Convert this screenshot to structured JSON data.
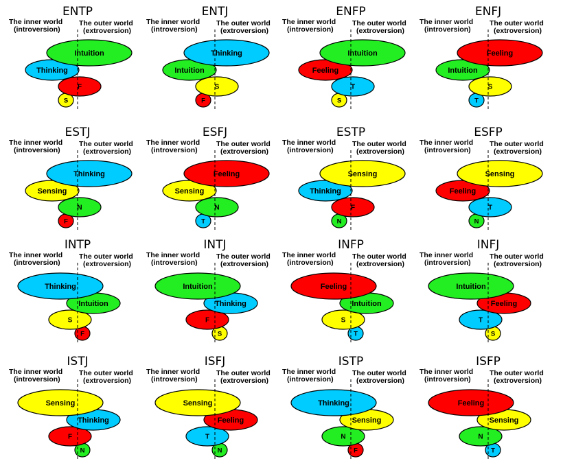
{
  "labels": {
    "inner_line1": "The inner world",
    "inner_line2": "(introversion)",
    "outer_line1": "The outer world",
    "outer_line2": "(extroversion)"
  },
  "colors": {
    "Thinking": "#00ccff",
    "Feeling": "#ff0000",
    "Intuition": "#22ee22",
    "Sensing": "#ffff00"
  },
  "letters": {
    "Thinking": "T",
    "Feeling": "F",
    "Intuition": "N",
    "Sensing": "S"
  },
  "types": [
    {
      "name": "ENTP",
      "functions": [
        "Intuition",
        "Thinking",
        "Feeling",
        "Sensing"
      ]
    },
    {
      "name": "ENTJ",
      "functions": [
        "Thinking",
        "Intuition",
        "Sensing",
        "Feeling"
      ]
    },
    {
      "name": "ENFP",
      "functions": [
        "Intuition",
        "Feeling",
        "Thinking",
        "Sensing"
      ]
    },
    {
      "name": "ENFJ",
      "functions": [
        "Feeling",
        "Intuition",
        "Sensing",
        "Thinking"
      ]
    },
    {
      "name": "ESTJ",
      "functions": [
        "Thinking",
        "Sensing",
        "Intuition",
        "Feeling"
      ]
    },
    {
      "name": "ESFJ",
      "functions": [
        "Feeling",
        "Sensing",
        "Intuition",
        "Thinking"
      ]
    },
    {
      "name": "ESTP",
      "functions": [
        "Sensing",
        "Thinking",
        "Feeling",
        "Intuition"
      ]
    },
    {
      "name": "ESFP",
      "functions": [
        "Sensing",
        "Feeling",
        "Thinking",
        "Intuition"
      ]
    },
    {
      "name": "INTP",
      "functions": [
        "Thinking",
        "Intuition",
        "Sensing",
        "Feeling"
      ]
    },
    {
      "name": "INTJ",
      "functions": [
        "Intuition",
        "Thinking",
        "Feeling",
        "Sensing"
      ]
    },
    {
      "name": "INFP",
      "functions": [
        "Feeling",
        "Intuition",
        "Sensing",
        "Thinking"
      ]
    },
    {
      "name": "INFJ",
      "functions": [
        "Intuition",
        "Feeling",
        "Thinking",
        "Sensing"
      ]
    },
    {
      "name": "ISTJ",
      "functions": [
        "Sensing",
        "Thinking",
        "Feeling",
        "Intuition"
      ]
    },
    {
      "name": "ISFJ",
      "functions": [
        "Sensing",
        "Feeling",
        "Thinking",
        "Intuition"
      ]
    },
    {
      "name": "ISTP",
      "functions": [
        "Thinking",
        "Sensing",
        "Intuition",
        "Feeling"
      ]
    },
    {
      "name": "ISFP",
      "functions": [
        "Feeling",
        "Sensing",
        "Intuition",
        "Thinking"
      ]
    }
  ]
}
